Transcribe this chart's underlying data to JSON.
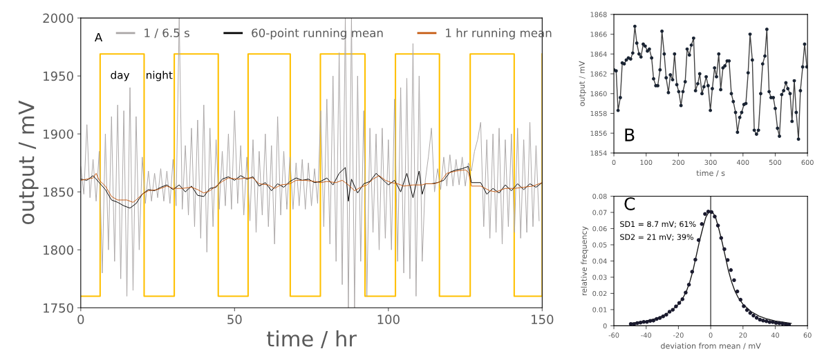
{
  "chart_data": [
    {
      "type": "line",
      "xlabel": "time / hr",
      "ylabel": "output / mV",
      "xlim": [
        0,
        150
      ],
      "ylim": [
        1750,
        2000
      ],
      "xticks": [
        0,
        50,
        100,
        150
      ],
      "yticks": [
        1750,
        1800,
        1850,
        1900,
        1950,
        2000
      ],
      "grid": false,
      "legend": "top",
      "marker": "none",
      "annotations": [
        "A",
        "day",
        "night"
      ],
      "series": [
        {
          "type": "step",
          "color": "#ffc000",
          "x": [
            0,
            6.3,
            20.6,
            30.4,
            44.7,
            54.4,
            68.1,
            77.9,
            92.4,
            102.3,
            116.6,
            126.6,
            140.9,
            150
          ],
          "values": [
            1760,
            1969,
            1760,
            1969,
            1760,
            1969,
            1760,
            1969,
            1760,
            1969,
            1760,
            1969,
            1760,
            1969
          ]
        },
        {
          "name": "1 / 6.5 s",
          "color": "#aaa6a6",
          "x": [
            0,
            1,
            2,
            3,
            4,
            5,
            6,
            7,
            8,
            9,
            10,
            11,
            12,
            13,
            14,
            15,
            16,
            17,
            18,
            19,
            20,
            21,
            22,
            23,
            24,
            25,
            26,
            27,
            28,
            29,
            30,
            31,
            32,
            33,
            34,
            35,
            36,
            37,
            38,
            39,
            40,
            41,
            42,
            43,
            44,
            45,
            46,
            47,
            48,
            49,
            50,
            51,
            52,
            53,
            54,
            55,
            56,
            57,
            58,
            59,
            60,
            61,
            62,
            63,
            64,
            65,
            66,
            67,
            68,
            69,
            70,
            71,
            72,
            73,
            74,
            75,
            76,
            77,
            78,
            79,
            80,
            81,
            82,
            83,
            84,
            85,
            86,
            87,
            88,
            89,
            90,
            91,
            92,
            93,
            94,
            95,
            96,
            97,
            98,
            99,
            100,
            101,
            102,
            103,
            104,
            105,
            106,
            107,
            108,
            109,
            110,
            111,
            112,
            113,
            114,
            115,
            116,
            117,
            118,
            119,
            120,
            121,
            122,
            123,
            124,
            125,
            126,
            127,
            128,
            129,
            130,
            131,
            132,
            133,
            134,
            135,
            136,
            137,
            138,
            139,
            140,
            141,
            142,
            143,
            144,
            145,
            146,
            147,
            148,
            149
          ],
          "values": [
            1872,
            1848,
            1908,
            1845,
            1878,
            1842,
            1885,
            1780,
            1900,
            1800,
            1915,
            1790,
            1925,
            1775,
            1920,
            1760,
            1940,
            1765,
            1915,
            1800,
            1880,
            1840,
            1868,
            1842,
            1866,
            1845,
            1870,
            1842,
            1868,
            1840,
            1878,
            1838,
            2000,
            1835,
            1890,
            1830,
            1905,
            1820,
            1912,
            1810,
            1925,
            1798,
            1905,
            1820,
            1895,
            1835,
            1885,
            1838,
            1900,
            1835,
            1920,
            1840,
            1890,
            1830,
            1880,
            1825,
            1895,
            1815,
            1885,
            1830,
            1900,
            1820,
            1890,
            1805,
            1915,
            1830,
            1885,
            1835,
            1880,
            1835,
            1875,
            1838,
            1878,
            1835,
            1875,
            1838,
            1870,
            1840,
            1920,
            1820,
            1930,
            1805,
            1950,
            1790,
            1970,
            1770,
            2000,
            1750,
            2000,
            1750,
            1950,
            1790,
            1920,
            1760,
            1905,
            1815,
            1900,
            1800,
            1905,
            1810,
            1895,
            1800,
            1930,
            1790,
            1940,
            1780,
            1948,
            1775,
            1978,
            1760,
            1950,
            1790,
            1860,
            1880,
            1905,
            1850,
            1870,
            1852,
            1880,
            1855,
            1882,
            1855,
            1878,
            1856,
            1880,
            1855,
            1875,
            1868,
            1885,
            1895,
            1910,
            1820,
            1895,
            1810,
            1900,
            1815,
            1905,
            1805,
            1895,
            1820,
            1900,
            1815,
            1905,
            1810,
            1895,
            1815,
            1910,
            1820,
            1890,
            1825
          ]
        },
        {
          "name": "60-point running mean",
          "color": "#000000",
          "x": [
            0,
            2,
            4,
            6,
            8,
            10,
            12,
            14,
            16,
            18,
            20,
            22,
            24,
            26,
            28,
            30,
            32,
            34,
            36,
            38,
            40,
            42,
            44,
            46,
            48,
            50,
            52,
            54,
            56,
            58,
            60,
            62,
            64,
            66,
            68,
            70,
            72,
            74,
            76,
            78,
            80,
            82,
            84,
            86,
            87,
            88,
            90,
            92,
            94,
            96,
            98,
            100,
            102,
            104,
            106,
            108,
            110,
            111,
            112,
            114,
            116,
            118,
            120,
            122,
            124,
            126,
            127,
            130,
            132,
            134,
            136,
            138,
            140,
            142,
            144,
            146,
            148,
            150
          ],
          "values": [
            1861,
            1860,
            1864,
            1858,
            1852,
            1843,
            1841,
            1838,
            1836,
            1840,
            1848,
            1852,
            1851,
            1854,
            1856,
            1852,
            1856,
            1850,
            1855,
            1847,
            1846,
            1853,
            1854,
            1861,
            1863,
            1860,
            1864,
            1861,
            1863,
            1855,
            1858,
            1851,
            1857,
            1854,
            1859,
            1862,
            1860,
            1861,
            1858,
            1859,
            1862,
            1856,
            1866,
            1871,
            1842,
            1861,
            1849,
            1857,
            1859,
            1866,
            1861,
            1856,
            1860,
            1850,
            1866,
            1845,
            1868,
            1848,
            1857,
            1857,
            1858,
            1860,
            1867,
            1869,
            1870,
            1872,
            1858,
            1858,
            1848,
            1853,
            1849,
            1856,
            1851,
            1857,
            1852,
            1857,
            1854,
            1858
          ]
        },
        {
          "name": "1 hr running mean",
          "color": "#c55a11",
          "x": [
            0,
            4,
            5,
            6,
            8,
            10,
            12,
            15,
            17,
            18,
            20,
            22,
            25,
            28,
            30,
            33,
            36,
            38,
            40,
            42,
            44,
            46,
            48,
            51,
            54,
            56,
            58,
            61,
            63,
            65,
            68,
            70,
            73,
            76,
            78,
            80,
            83,
            85,
            87,
            89,
            91,
            93,
            95,
            97,
            99,
            101,
            103,
            105,
            108,
            111,
            112,
            115,
            117,
            119,
            122,
            125,
            126,
            127,
            130,
            133,
            135,
            138,
            141,
            144,
            147,
            150
          ],
          "values": [
            1860,
            1862,
            1866,
            1860,
            1855,
            1846,
            1843,
            1843,
            1841,
            1843,
            1848,
            1851,
            1852,
            1855,
            1853,
            1853,
            1854,
            1852,
            1849,
            1851,
            1855,
            1859,
            1862,
            1861,
            1862,
            1862,
            1857,
            1856,
            1853,
            1856,
            1857,
            1860,
            1860,
            1859,
            1858,
            1859,
            1858,
            1860,
            1856,
            1851,
            1854,
            1856,
            1861,
            1864,
            1860,
            1858,
            1857,
            1855,
            1856,
            1856,
            1857,
            1857,
            1859,
            1866,
            1868,
            1869,
            1867,
            1855,
            1855,
            1851,
            1850,
            1853,
            1853,
            1854,
            1855,
            1858
          ]
        }
      ]
    },
    {
      "type": "line",
      "xlabel": "time / s",
      "ylabel": "output / mV",
      "xlim": [
        0,
        600
      ],
      "ylim": [
        1854,
        1868
      ],
      "xticks": [
        0,
        100,
        200,
        300,
        400,
        500,
        600
      ],
      "yticks": [
        1854,
        1856,
        1858,
        1860,
        1862,
        1864,
        1866,
        1868
      ],
      "grid": false,
      "marker": "circle",
      "annotations": [
        "B"
      ],
      "series": [
        {
          "color": "#404040",
          "x": [
            0,
            7,
            13,
            20,
            26,
            32,
            38.5,
            45,
            52,
            58.5,
            65,
            71,
            78,
            84,
            91,
            97,
            104,
            110,
            117,
            123,
            130,
            136,
            143,
            149,
            156,
            162,
            169,
            175,
            182,
            188,
            195,
            201,
            208,
            214,
            221,
            227,
            234,
            240,
            247,
            253,
            260,
            266,
            273,
            279,
            286,
            292,
            299,
            305,
            312,
            318,
            325,
            331,
            338,
            344,
            351,
            357,
            364,
            370,
            377,
            383,
            390,
            396,
            403,
            409,
            416,
            422,
            429,
            435,
            442,
            448,
            455,
            461,
            468,
            474,
            481,
            487,
            494,
            500,
            507,
            513,
            520,
            526,
            533,
            539,
            546,
            552,
            559,
            565,
            572,
            578,
            585,
            591,
            598
          ],
          "values": [
            1862.4,
            1862.3,
            1858.3,
            1859.6,
            1863.1,
            1863.0,
            1863.4,
            1863.6,
            1863.5,
            1864.1,
            1866.8,
            1865.1,
            1864.0,
            1863.7,
            1865.0,
            1864.8,
            1864.3,
            1864.5,
            1863.6,
            1861.5,
            1860.8,
            1860.8,
            1862.4,
            1866.3,
            1864.0,
            1861.6,
            1860.1,
            1861.9,
            1861.4,
            1864.0,
            1860.9,
            1860.2,
            1858.8,
            1860.2,
            1861.2,
            1864.5,
            1863.9,
            1864.9,
            1865.6,
            1860.3,
            1861.0,
            1862.0,
            1860.0,
            1860.7,
            1861.7,
            1860.8,
            1858.3,
            1860.5,
            1862.6,
            1861.7,
            1864.0,
            1860.4,
            1862.6,
            1862.8,
            1863.3,
            1863.3,
            1860.0,
            1859.2,
            1858.1,
            1856.1,
            1857.6,
            1858.1,
            1858.9,
            1859.0,
            1862.1,
            1866.0,
            1863.4,
            1856.3,
            1855.9,
            1856.3,
            1860.0,
            1863.0,
            1863.8,
            1866.5,
            1860.2,
            1859.6,
            1859.6,
            1858.5,
            1856.5,
            1855.7,
            1859.9,
            1860.3,
            1861.1,
            1860.5,
            1860.0,
            1857.2,
            1861.3,
            1858.1,
            1855.4,
            1860.3,
            1862.7,
            1865.0,
            1862.7
          ]
        }
      ]
    },
    {
      "type": "scatter",
      "xlabel": "deviation from mean / mV",
      "ylabel": "relative frequency",
      "xlim": [
        -60,
        60
      ],
      "ylim": [
        0,
        0.08
      ],
      "xticks": [
        -60,
        -40,
        -20,
        0,
        20,
        40,
        60
      ],
      "yticks": [
        0,
        0.01,
        0.02,
        0.03,
        0.04,
        0.05,
        0.06,
        0.07,
        0.08
      ],
      "grid": false,
      "marker": "circle",
      "annotations": [
        "C",
        "SD1 = 8.7 mV; 61%",
        "SD2 = 21 mV; 39%"
      ],
      "ref_lines": [
        {
          "axis": "x",
          "value": 0,
          "color": "#404040"
        }
      ],
      "series": [
        {
          "color": "#1a1a2e",
          "x": [
            -49.5,
            -47.5,
            -45.5,
            -43.5,
            -41.5,
            -39.5,
            -37.5,
            -35.5,
            -33.5,
            -31.5,
            -29.5,
            -27.5,
            -25.5,
            -23.5,
            -21.5,
            -19.5,
            -17.5,
            -15.5,
            -13.5,
            -11.5,
            -9.5,
            -7.5,
            -5.5,
            -3.5,
            -1.5,
            0.5,
            2.5,
            4.5,
            6.5,
            8.5,
            10.5,
            12.5,
            14.5,
            16.5,
            18.5,
            20.5,
            22.5,
            24.5,
            26.5,
            28.5,
            30.5,
            32.5,
            34.5,
            36.5,
            38.5,
            40.5,
            42.5,
            44.5,
            46.5,
            48.5
          ],
          "values": [
            0.0011,
            0.001,
            0.0017,
            0.002,
            0.0024,
            0.0024,
            0.003,
            0.0032,
            0.0042,
            0.0048,
            0.0058,
            0.0069,
            0.0087,
            0.0099,
            0.012,
            0.0141,
            0.0164,
            0.0205,
            0.0254,
            0.0334,
            0.0408,
            0.0529,
            0.0628,
            0.069,
            0.0705,
            0.0702,
            0.0674,
            0.0619,
            0.0542,
            0.0473,
            0.0406,
            0.0344,
            0.0282,
            0.0212,
            0.0161,
            0.0121,
            0.0097,
            0.0079,
            0.0063,
            0.0049,
            0.0038,
            0.0032,
            0.0028,
            0.0023,
            0.0023,
            0.0018,
            0.0016,
            0.0013,
            0.001,
            0.0007
          ]
        },
        {
          "type": "line",
          "marker": "none",
          "color": "#1a1a1a",
          "x": [
            -50,
            -45,
            -40,
            -35,
            -30,
            -25,
            -20,
            -17,
            -15,
            -13,
            -11,
            -9,
            -7,
            -5,
            -3,
            -1,
            0,
            1,
            3,
            5,
            7,
            9,
            11,
            13,
            15,
            17,
            20,
            25,
            30,
            35,
            40,
            45,
            50
          ],
          "values": [
            0.0015,
            0.0022,
            0.003,
            0.0042,
            0.006,
            0.0088,
            0.0133,
            0.0175,
            0.0215,
            0.027,
            0.034,
            0.043,
            0.052,
            0.06,
            0.067,
            0.0705,
            0.071,
            0.0705,
            0.067,
            0.06,
            0.052,
            0.043,
            0.034,
            0.027,
            0.0215,
            0.0175,
            0.0133,
            0.0088,
            0.006,
            0.0042,
            0.003,
            0.0022,
            0.0015
          ]
        }
      ]
    }
  ]
}
